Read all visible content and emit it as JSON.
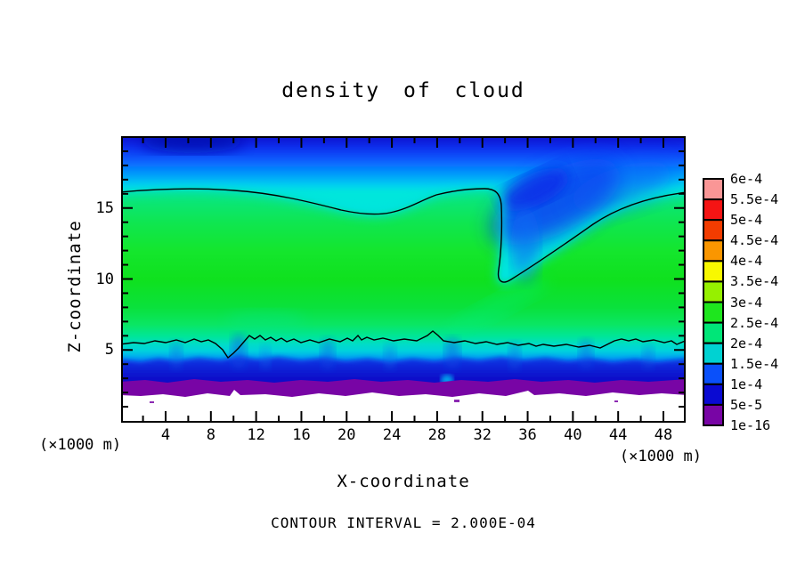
{
  "title": "density of cloud",
  "axes": {
    "x_title": "X-coordinate",
    "z_title": "Z-coordinate",
    "unit_left": "(×1000 m)",
    "unit_right": "(×1000 m)",
    "x_ticks": [
      4,
      8,
      12,
      16,
      20,
      24,
      28,
      32,
      36,
      40,
      44,
      48
    ],
    "z_ticks": [
      5,
      10,
      15
    ]
  },
  "footer_note": "CONTOUR INTERVAL = 2.000E-04",
  "colorbar": {
    "labels": [
      "6e-4",
      "5.5e-4",
      "5e-4",
      "4.5e-4",
      "4e-4",
      "3.5e-4",
      "3e-4",
      "2.5e-4",
      "2e-4",
      "1.5e-4",
      "1e-4",
      "5e-5",
      "1e-16"
    ],
    "colors": [
      "#FA9696",
      "#F51414",
      "#F23C00",
      "#FA9600",
      "#F8F800",
      "#96F000",
      "#1EE61E",
      "#00E678",
      "#00D2D2",
      "#0A50FA",
      "#0A0AD2",
      "#7805A5"
    ]
  },
  "chart_data": {
    "type": "heatmap",
    "title": "density of cloud",
    "xlabel": "X-coordinate",
    "ylabel": "Z-coordinate",
    "x_unit": "(×1000 m)",
    "z_unit": "(×1000 m)",
    "xlim": [
      0,
      50
    ],
    "zlim": [
      0,
      20
    ],
    "x_major_ticks": [
      4,
      8,
      12,
      16,
      20,
      24,
      28,
      32,
      36,
      40,
      44,
      48
    ],
    "x_minor_step": 2,
    "z_major_ticks": [
      5,
      10,
      15
    ],
    "z_minor_step": 1,
    "grid": false,
    "legend_position": "right-colorbar",
    "contour_interval": 0.0002,
    "fill_levels": [
      1e-16,
      5e-05,
      0.0001,
      0.00015,
      0.0002,
      0.00025,
      0.0003,
      0.00035,
      0.0004,
      0.00045,
      0.0005,
      0.00055,
      0.0006
    ],
    "contour_lines": [
      {
        "value": 0.0002,
        "name": "upper cloud boundary",
        "points_x_z": [
          [
            0,
            16.2
          ],
          [
            6,
            16.3
          ],
          [
            12,
            16.0
          ],
          [
            16,
            15.4
          ],
          [
            20,
            14.8
          ],
          [
            23,
            14.6
          ],
          [
            26,
            15.2
          ],
          [
            28,
            15.9
          ],
          [
            31,
            16.2
          ],
          [
            33,
            16.2
          ],
          [
            33.5,
            13.5
          ],
          [
            33.3,
            10.5
          ],
          [
            34.2,
            10.0
          ],
          [
            36,
            11.2
          ],
          [
            40,
            13.5
          ],
          [
            44,
            15.0
          ],
          [
            48,
            15.9
          ],
          [
            50,
            16.2
          ]
        ]
      },
      {
        "value": 0.0002,
        "name": "lower cloud boundary (cloud base)",
        "points_x_z": [
          [
            0,
            5.4
          ],
          [
            4,
            5.5
          ],
          [
            7,
            5.6
          ],
          [
            9.3,
            4.5
          ],
          [
            11,
            5.7
          ],
          [
            13,
            5.4
          ],
          [
            16,
            5.5
          ],
          [
            19,
            5.3
          ],
          [
            22,
            5.5
          ],
          [
            25,
            5.4
          ],
          [
            27.3,
            6.2
          ],
          [
            30,
            5.4
          ],
          [
            34,
            5.3
          ],
          [
            38,
            5.2
          ],
          [
            42,
            5.5
          ],
          [
            44,
            5.7
          ],
          [
            46,
            5.6
          ],
          [
            48,
            5.1
          ],
          [
            50,
            5.4
          ]
        ]
      }
    ],
    "representative_vertical_profile": [
      {
        "z": 20,
        "density": 8e-05
      },
      {
        "z": 18,
        "density": 0.00013
      },
      {
        "z": 16.2,
        "density": 0.0002
      },
      {
        "z": 14,
        "density": 0.00024
      },
      {
        "z": 12,
        "density": 0.00026
      },
      {
        "z": 10,
        "density": 0.00027
      },
      {
        "z": 8,
        "density": 0.00025
      },
      {
        "z": 6,
        "density": 0.00022
      },
      {
        "z": 5.3,
        "density": 0.0002
      },
      {
        "z": 4.5,
        "density": 0.00012
      },
      {
        "z": 3.5,
        "density": 5e-05
      },
      {
        "z": 2.6,
        "density": 1e-16
      },
      {
        "z": 2.2,
        "density": 0
      }
    ],
    "features": [
      "low-density notch plunging from z≈16 down to z≈10 near x≈34",
      "turbulent cloud base layer between z≈2.5 and z≈5.5",
      "thin purple near-zero band around z≈2.5",
      "white (zero density) region below z≈2.3 with ragged boundary"
    ]
  }
}
